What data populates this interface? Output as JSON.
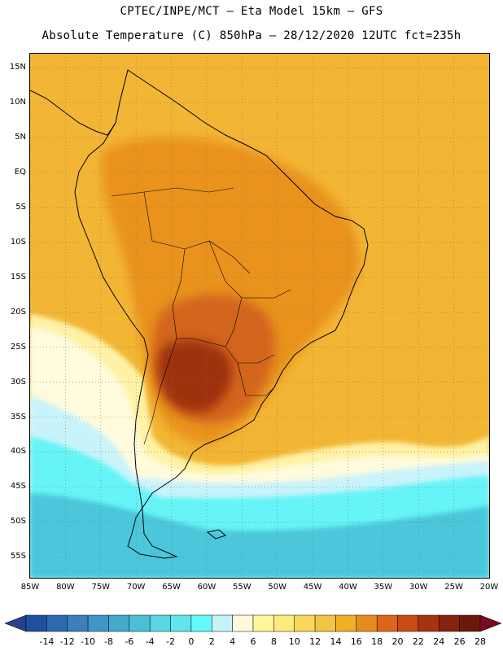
{
  "header": {
    "title_line1": "CPTEC/INPE/MCT –  Eta Model 15km – GFS",
    "title_line2": "Absolute Temperature (C) 850hPa – 28/12/2020 12UTC fct=235h"
  },
  "map": {
    "lon_range": [
      -85,
      -20
    ],
    "lat_range": [
      -58,
      17
    ],
    "lat_ticks": [
      {
        "value": 15,
        "label": "15N"
      },
      {
        "value": 10,
        "label": "10N"
      },
      {
        "value": 5,
        "label": "5N"
      },
      {
        "value": 0,
        "label": "EQ"
      },
      {
        "value": -5,
        "label": "5S"
      },
      {
        "value": -10,
        "label": "10S"
      },
      {
        "value": -15,
        "label": "15S"
      },
      {
        "value": -20,
        "label": "20S"
      },
      {
        "value": -25,
        "label": "25S"
      },
      {
        "value": -30,
        "label": "30S"
      },
      {
        "value": -35,
        "label": "35S"
      },
      {
        "value": -40,
        "label": "40S"
      },
      {
        "value": -45,
        "label": "45S"
      },
      {
        "value": -50,
        "label": "50S"
      },
      {
        "value": -55,
        "label": "55S"
      }
    ],
    "lon_ticks": [
      {
        "value": -85,
        "label": "85W"
      },
      {
        "value": -80,
        "label": "80W"
      },
      {
        "value": -75,
        "label": "75W"
      },
      {
        "value": -70,
        "label": "70W"
      },
      {
        "value": -65,
        "label": "65W"
      },
      {
        "value": -60,
        "label": "60W"
      },
      {
        "value": -55,
        "label": "55W"
      },
      {
        "value": -50,
        "label": "50W"
      },
      {
        "value": -45,
        "label": "45W"
      },
      {
        "value": -40,
        "label": "40W"
      },
      {
        "value": -35,
        "label": "35W"
      },
      {
        "value": -30,
        "label": "30W"
      },
      {
        "value": -25,
        "label": "25W"
      },
      {
        "value": -20,
        "label": "20W"
      }
    ],
    "grid": "dotted"
  },
  "colorbar": {
    "levels": [
      "-14",
      "-12",
      "-10",
      "-8",
      "-6",
      "-4",
      "-2",
      "0",
      "2",
      "4",
      "6",
      "8",
      "10",
      "12",
      "14",
      "16",
      "18",
      "20",
      "22",
      "24",
      "26",
      "28"
    ],
    "colors": [
      "#2a3f8f",
      "#1f4f9e",
      "#2f6aae",
      "#3b7fbb",
      "#3f96c4",
      "#45a9cc",
      "#4cbfd6",
      "#5ad5e2",
      "#60e6ea",
      "#66f8f8",
      "#c8f2f8",
      "#fff8dd",
      "#fff59a",
      "#fdea7a",
      "#f8d75d",
      "#f3c440",
      "#efb024",
      "#e68c1f",
      "#dc651a",
      "#c84a14",
      "#a63311",
      "#85240f",
      "#6a1a0d",
      "#7a0b22"
    ]
  }
}
